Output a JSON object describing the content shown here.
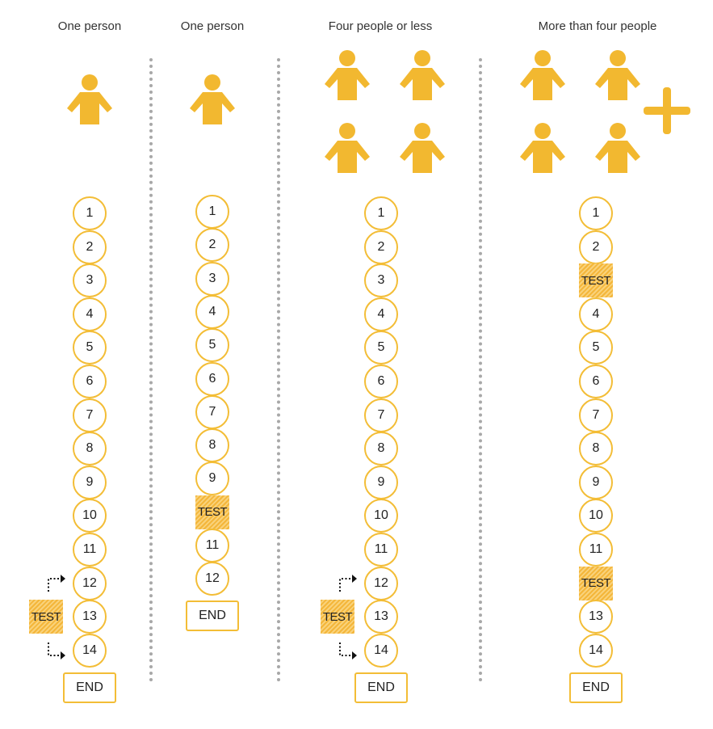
{
  "colors": {
    "accent": "#f3bd36",
    "person": "#f2b830",
    "divider": "#a8a8a8"
  },
  "columns": [
    {
      "title": "One person",
      "steps": [
        {
          "label": "1"
        },
        {
          "label": "2"
        },
        {
          "label": "3"
        },
        {
          "label": "4"
        },
        {
          "label": "5"
        },
        {
          "label": "6"
        },
        {
          "label": "7"
        },
        {
          "label": "8"
        },
        {
          "label": "9"
        },
        {
          "label": "10"
        },
        {
          "label": "11"
        },
        {
          "label": "12"
        },
        {
          "label": "13"
        },
        {
          "label": "14"
        }
      ],
      "side_test": "TEST",
      "end": "END"
    },
    {
      "title": "One person",
      "steps": [
        {
          "label": "1"
        },
        {
          "label": "2"
        },
        {
          "label": "3"
        },
        {
          "label": "4"
        },
        {
          "label": "5"
        },
        {
          "label": "6"
        },
        {
          "label": "7"
        },
        {
          "label": "8"
        },
        {
          "label": "9"
        },
        {
          "label": "TEST"
        },
        {
          "label": "11"
        },
        {
          "label": "12"
        }
      ],
      "end": "END"
    },
    {
      "title": "Four people or less",
      "steps": [
        {
          "label": "1"
        },
        {
          "label": "2"
        },
        {
          "label": "3"
        },
        {
          "label": "4"
        },
        {
          "label": "5"
        },
        {
          "label": "6"
        },
        {
          "label": "7"
        },
        {
          "label": "8"
        },
        {
          "label": "9"
        },
        {
          "label": "10"
        },
        {
          "label": "11"
        },
        {
          "label": "12"
        },
        {
          "label": "13"
        },
        {
          "label": "14"
        }
      ],
      "side_test": "TEST",
      "end": "END"
    },
    {
      "title": "More than four people",
      "steps": [
        {
          "label": "1"
        },
        {
          "label": "2"
        },
        {
          "label": "TEST"
        },
        {
          "label": "4"
        },
        {
          "label": "5"
        },
        {
          "label": "6"
        },
        {
          "label": "7"
        },
        {
          "label": "8"
        },
        {
          "label": "9"
        },
        {
          "label": "10"
        },
        {
          "label": "11"
        },
        {
          "label": "TEST"
        },
        {
          "label": "13"
        },
        {
          "label": "14"
        }
      ],
      "end": "END"
    }
  ]
}
